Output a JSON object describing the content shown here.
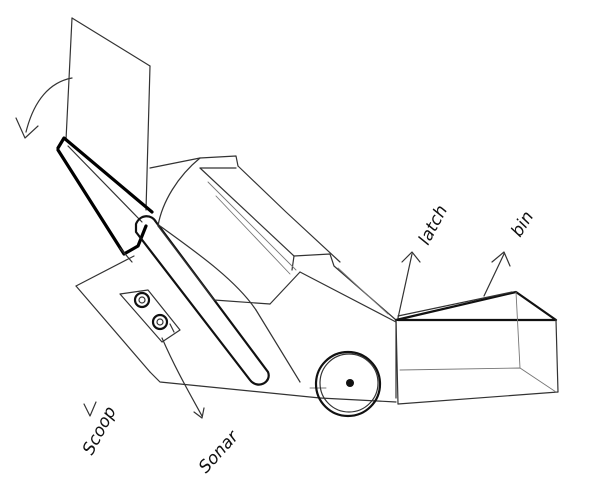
{
  "labels": {
    "latch": "latch",
    "bin": "bin",
    "scoop": "Scoop",
    "sonar": "Sonar"
  },
  "colors": {
    "ink": "#111111",
    "paper": "#ffffff"
  }
}
